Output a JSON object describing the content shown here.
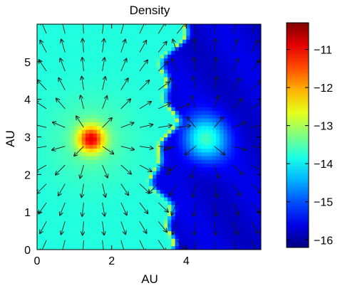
{
  "chart_data": {
    "type": "heatmap",
    "title": "Density",
    "xlabel": "AU",
    "ylabel": "AU",
    "xlim": [
      0,
      6
    ],
    "ylim": [
      0,
      6
    ],
    "x_ticks": [
      0,
      2,
      4
    ],
    "y_ticks": [
      0,
      1,
      2,
      3,
      4,
      5
    ],
    "x_tick_labels": [
      "0",
      "2",
      "4"
    ],
    "y_tick_labels": [
      "0",
      "1",
      "2",
      "3",
      "4",
      "5"
    ],
    "colorbar": {
      "range": [
        -16.2,
        -10.3
      ],
      "ticks": [
        -11,
        -12,
        -13,
        -14,
        -15,
        -16
      ],
      "tick_labels": [
        "−11",
        "−12",
        "−13",
        "−14",
        "−15",
        "−16"
      ],
      "colormap": "jet"
    },
    "sources": [
      {
        "x": 1.45,
        "y": 2.95,
        "peak": -11.2
      },
      {
        "x": 4.5,
        "y": 2.95,
        "peak": -13.7
      }
    ],
    "background_level": -13.8,
    "low_region_level": -15.7,
    "vector_field": "velocity arrows radiating outward from both density peaks",
    "grid": false
  }
}
